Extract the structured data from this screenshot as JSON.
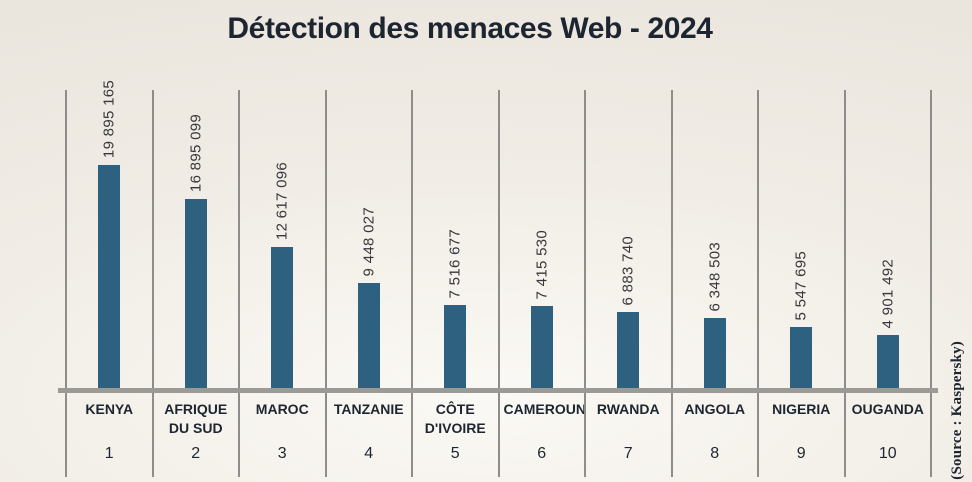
{
  "title": "Détection des menaces Web - 2024",
  "source_credit": "(Source : Kaspersky)",
  "colors": {
    "bar": "#2d617f",
    "background": "#efebe4",
    "gridline": "#8f8d8b",
    "baseline": "#9c9a97",
    "text": "#1d2530"
  },
  "chart_data": {
    "type": "bar",
    "title": "Détection des menaces Web - 2024",
    "categories": [
      "KENYA",
      "AFRIQUE DU SUD",
      "MAROC",
      "TANZANIE",
      "CÔTE D'IVOIRE",
      "CAMEROUN",
      "RWANDA",
      "ANGOLA",
      "NIGERIA",
      "OUGANDA"
    ],
    "ranks": [
      "1",
      "2",
      "3",
      "4",
      "5",
      "6",
      "7",
      "8",
      "9",
      "10"
    ],
    "values": [
      19895165,
      16895099,
      12617096,
      9448027,
      7516677,
      7415530,
      6883740,
      6348503,
      5547695,
      4901492
    ],
    "value_labels": [
      "19 895 165",
      "16 895 099",
      "12 617 096",
      "9 448 027",
      "7 516 677",
      "7 415 530",
      "6 883 740",
      "6 348 503",
      "5 547 695",
      "4 901 492"
    ],
    "xlabel": "",
    "ylabel": "",
    "ylim": [
      0,
      19895165
    ],
    "legend": "none",
    "grid": "vertical-column-separators",
    "bar_orientation": "vertical",
    "value_label_rotation": -90,
    "source": "(Source : Kaspersky)"
  }
}
